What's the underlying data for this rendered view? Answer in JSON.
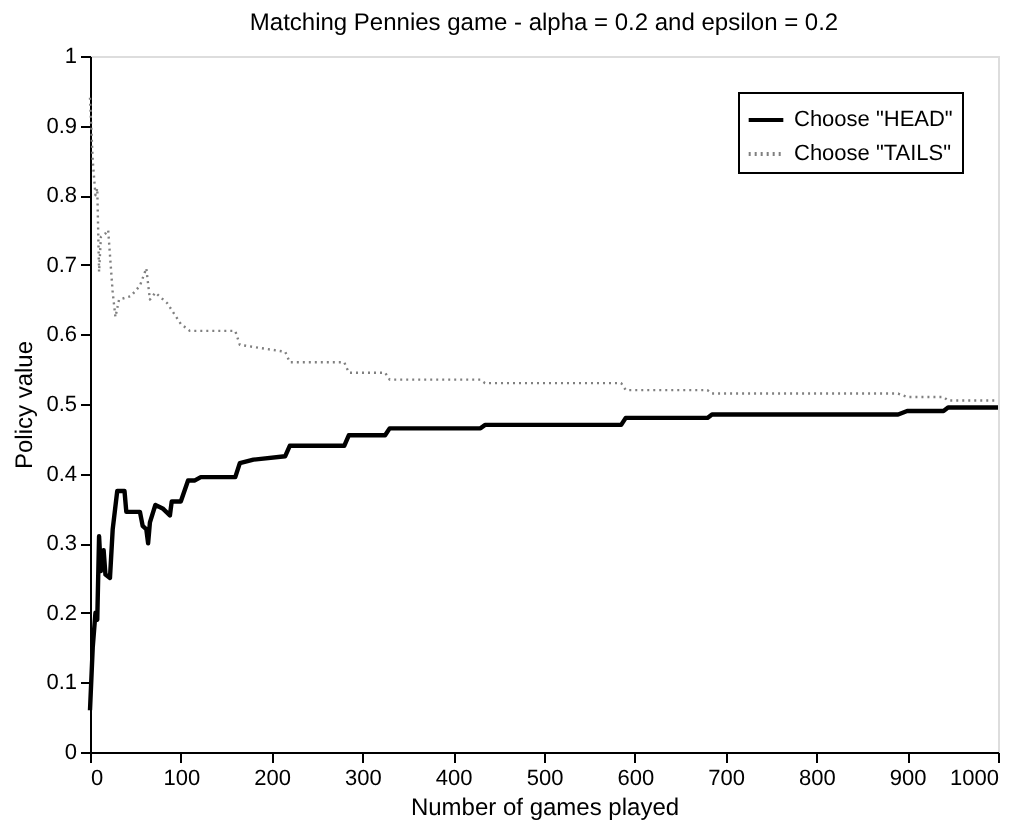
{
  "chart_data": {
    "type": "line",
    "title": "Matching Pennies game - alpha = 0.2 and epsilon = 0.2",
    "xlabel": "Number of games played",
    "ylabel": "Policy value",
    "xlim": [
      0,
      1000
    ],
    "xticks": [
      0,
      100,
      200,
      300,
      400,
      500,
      600,
      700,
      800,
      900,
      1000
    ],
    "ylim": [
      0,
      1
    ],
    "yticks": [
      0,
      0.1,
      0.2,
      0.3,
      0.4,
      0.5,
      0.6,
      0.7,
      0.8,
      0.9,
      1
    ],
    "grid": false,
    "legend": "top right",
    "marker": "none",
    "series": [
      {
        "name": "Choose \"HEAD\"",
        "color": "#000000",
        "line_style": "solid",
        "x": [
          0,
          3,
          6,
          8,
          10,
          12,
          15,
          17,
          22,
          25,
          30,
          38,
          40,
          55,
          58,
          62,
          64,
          66,
          72,
          80,
          88,
          90,
          100,
          108,
          115,
          122,
          160,
          165,
          180,
          215,
          220,
          280,
          285,
          325,
          330,
          430,
          435,
          585,
          590,
          680,
          685,
          890,
          900,
          940,
          945,
          1000
        ],
        "values": [
          0.06,
          0.15,
          0.2,
          0.19,
          0.31,
          0.26,
          0.29,
          0.255,
          0.25,
          0.32,
          0.375,
          0.375,
          0.345,
          0.345,
          0.325,
          0.32,
          0.3,
          0.33,
          0.355,
          0.35,
          0.34,
          0.36,
          0.36,
          0.39,
          0.39,
          0.395,
          0.395,
          0.415,
          0.42,
          0.425,
          0.44,
          0.44,
          0.455,
          0.455,
          0.465,
          0.465,
          0.47,
          0.47,
          0.48,
          0.48,
          0.485,
          0.485,
          0.49,
          0.49,
          0.495,
          0.495
        ]
      },
      {
        "name": "Choose \"TAILS\"",
        "color": "#808080",
        "line_style": "dotted",
        "x": [
          0,
          3,
          6,
          8,
          10,
          12,
          17,
          20,
          25,
          28,
          32,
          45,
          55,
          62,
          66,
          72,
          85,
          100,
          110,
          160,
          165,
          215,
          220,
          280,
          285,
          325,
          330,
          430,
          435,
          585,
          590,
          680,
          685,
          890,
          900,
          940,
          945,
          1000
        ],
        "values": [
          0.94,
          0.85,
          0.8,
          0.81,
          0.69,
          0.74,
          0.745,
          0.75,
          0.66,
          0.625,
          0.65,
          0.655,
          0.67,
          0.695,
          0.65,
          0.66,
          0.645,
          0.615,
          0.605,
          0.605,
          0.585,
          0.575,
          0.56,
          0.56,
          0.545,
          0.545,
          0.535,
          0.535,
          0.53,
          0.53,
          0.52,
          0.52,
          0.515,
          0.515,
          0.51,
          0.51,
          0.505,
          0.505
        ]
      }
    ]
  }
}
